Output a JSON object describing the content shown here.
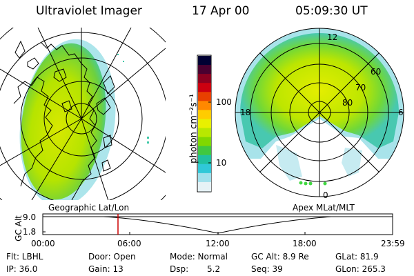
{
  "header": {
    "instrument": "Ultraviolet Imager",
    "date": "17 Apr 00",
    "time": "05:09:30 UT"
  },
  "colorbar": {
    "label": "photon cm⁻²s⁻¹",
    "ticks": [
      "100",
      "10"
    ],
    "colors": [
      "#000033",
      "#4a0030",
      "#8c0020",
      "#cc0010",
      "#e84000",
      "#ff8800",
      "#ffcc00",
      "#e8f000",
      "#b8e800",
      "#80d800",
      "#40c840",
      "#20c0a0",
      "#30c8d8",
      "#a0e0ec",
      "#e6f2f6"
    ]
  },
  "left_panel": {
    "name": "Geographic Lat/Lon"
  },
  "right_panel": {
    "name": "Apex MLat/MLT",
    "mlt_labels": {
      "top": "12",
      "left": "18",
      "right": "6",
      "bottom": "0"
    },
    "lat_labels": [
      "60",
      "70",
      "80"
    ]
  },
  "timeline": {
    "axis_label": "GC Alt",
    "y_ticks": [
      "9.0",
      "1.8"
    ],
    "x_ticks": [
      "00:00",
      "06:00",
      "12:00",
      "18:00",
      "23:59"
    ],
    "marker_time": "05:09:30",
    "marker_color": "#cc0000"
  },
  "info": {
    "flt": "Flt: LBHL",
    "ip": "IP: 36.0",
    "door": "Door: Open",
    "gain": "Gain: 13",
    "mode": "Mode: Normal",
    "dsp": "Dsp:",
    "dsp_value": "5.2",
    "gcalt": "GC Alt: 8.9 Re",
    "seq": "Seq: 39",
    "glat": "GLat: 81.9",
    "glon": "GLon: 265.3"
  }
}
